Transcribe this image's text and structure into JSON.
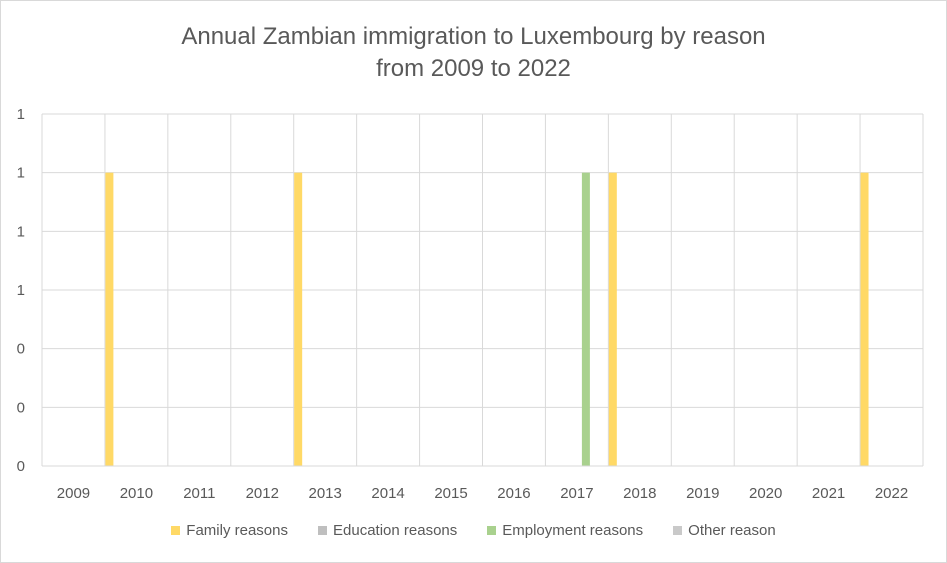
{
  "chart_data": {
    "type": "bar",
    "title_lines": [
      "Annual Zambian immigration to Luxembourg by reason",
      "from 2009 to 2022"
    ],
    "categories": [
      "2009",
      "2010",
      "2011",
      "2012",
      "2013",
      "2014",
      "2015",
      "2016",
      "2017",
      "2018",
      "2019",
      "2020",
      "2021",
      "2022"
    ],
    "series": [
      {
        "name": "Family reasons",
        "color": "#ffd966",
        "values": [
          0,
          1,
          0,
          0,
          1,
          0,
          0,
          0,
          0,
          1,
          0,
          0,
          0,
          1
        ]
      },
      {
        "name": "Education reasons",
        "color": "#bfbfbf",
        "values": [
          0,
          0,
          0,
          0,
          0,
          0,
          0,
          0,
          0,
          0,
          0,
          0,
          0,
          0
        ]
      },
      {
        "name": "Employment reasons",
        "color": "#a9d18e",
        "values": [
          0,
          0,
          0,
          0,
          0,
          0,
          0,
          0,
          1,
          0,
          0,
          0,
          0,
          0
        ]
      },
      {
        "name": "Other reason",
        "color": "#c9c9c9",
        "values": [
          0,
          0,
          0,
          0,
          0,
          0,
          0,
          0,
          0,
          0,
          0,
          0,
          0,
          0
        ]
      }
    ],
    "y_ticks": [
      0,
      0.2,
      0.4,
      0.6,
      0.8,
      1.0,
      1.2
    ],
    "y_tick_labels": [
      "0",
      "0",
      "0",
      "1",
      "1",
      "1",
      "1"
    ],
    "ylim": [
      0,
      1.2
    ],
    "grid": true,
    "legend_position": "bottom"
  }
}
